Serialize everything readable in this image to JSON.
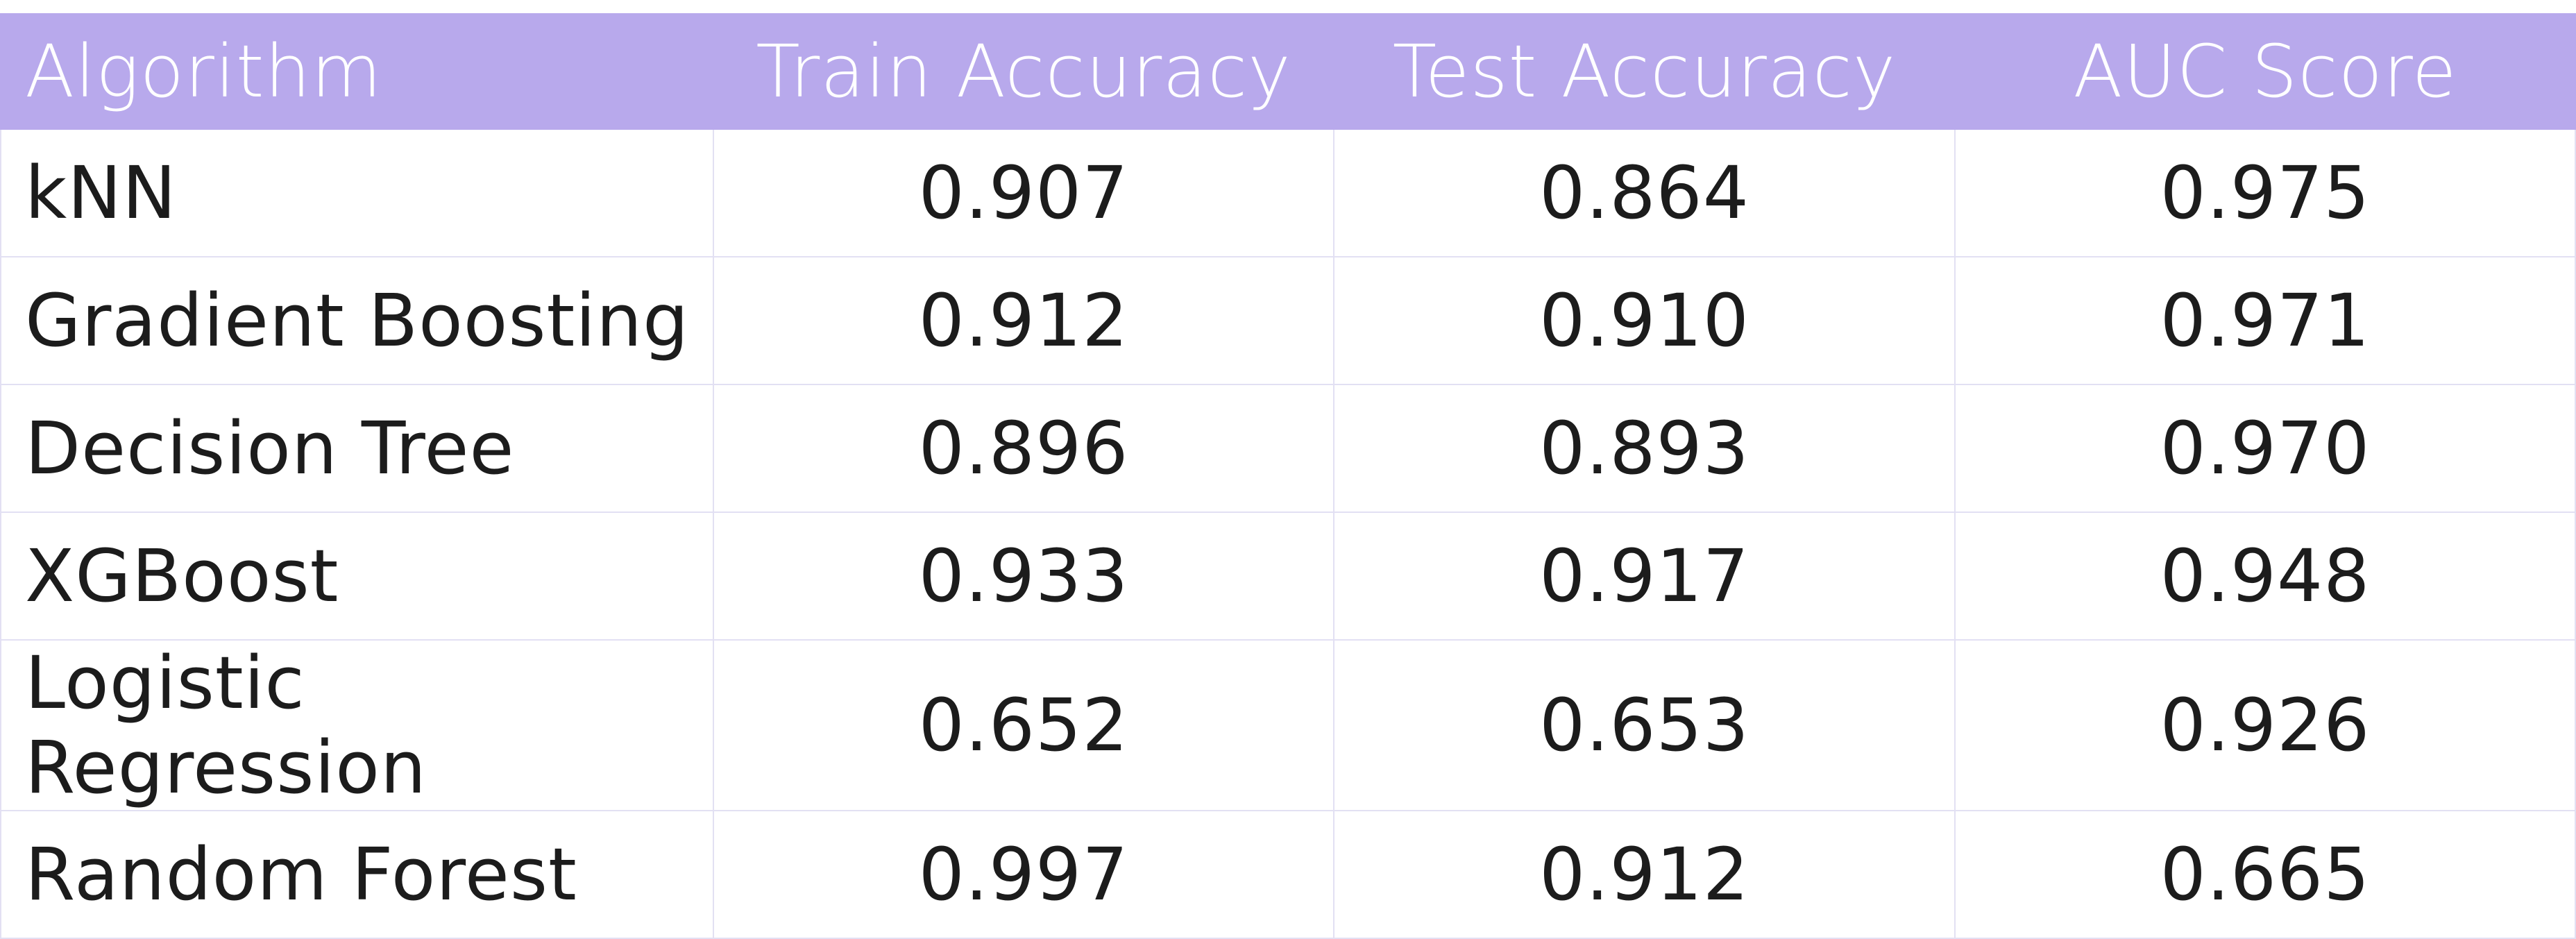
{
  "chart_data": {
    "type": "table",
    "columns": [
      "Algorithm",
      "Train Accuracy",
      "Test Accuracy",
      "AUC Score"
    ],
    "rows": [
      [
        "kNN",
        "0.907",
        "0.864",
        "0.975"
      ],
      [
        "Gradient Boosting",
        "0.912",
        "0.910",
        "0.971"
      ],
      [
        "Decision Tree",
        "0.896",
        "0.893",
        "0.970"
      ],
      [
        "XGBoost",
        "0.933",
        "0.917",
        "0.948"
      ],
      [
        "Logistic Regression",
        "0.652",
        "0.653",
        "0.926"
      ],
      [
        "Random Forest",
        "0.997",
        "0.912",
        "0.665"
      ]
    ]
  },
  "colors": {
    "header_background": "#b8a9ec",
    "header_text": "#ffffff",
    "grid_lines": "#e2e0f3",
    "cell_text": "#1c1c1c"
  }
}
